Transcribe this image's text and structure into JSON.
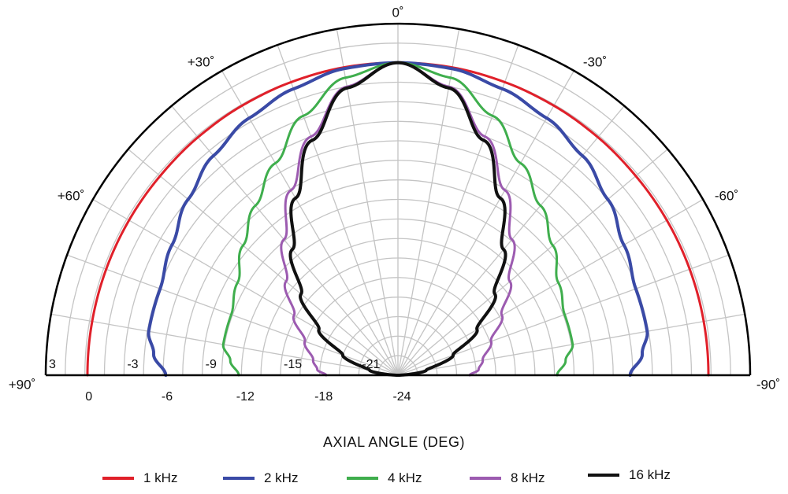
{
  "chart_data": {
    "type": "polar-line",
    "xlabel": "AXIAL ANGLE (DEG)",
    "angle_labels": [
      {
        "angle": 0,
        "text": "0˚"
      },
      {
        "angle": 30,
        "text": "+30˚"
      },
      {
        "angle": -30,
        "text": "-30˚"
      },
      {
        "angle": 60,
        "text": "+60˚"
      },
      {
        "angle": -60,
        "text": "-60˚"
      },
      {
        "angle": 90,
        "text": "+90˚"
      },
      {
        "angle": -90,
        "text": "-90˚"
      }
    ],
    "angle_range": [
      -90,
      90
    ],
    "angle_grid_step": 10,
    "radial_range_db": [
      -24,
      3
    ],
    "radial_grid_step_db": 1.5,
    "ring_labels_left": [
      "3",
      "-3",
      "-9",
      "-15",
      "-21"
    ],
    "ring_labels_right": [
      "0",
      "-6",
      "-12",
      "-18",
      "-24"
    ],
    "grid": true,
    "legend_position": "bottom",
    "series": [
      {
        "name": "1 kHz",
        "color": "#e0202a",
        "width": 3,
        "angles": [
          0,
          10,
          20,
          30,
          40,
          50,
          60,
          70,
          80,
          90
        ],
        "values": [
          0,
          0,
          -0.05,
          -0.1,
          -0.15,
          -0.2,
          -0.2,
          -0.2,
          -0.2,
          -0.2
        ]
      },
      {
        "name": "2 kHz",
        "color": "#3a4aa6",
        "width": 4,
        "angles": [
          0,
          10,
          20,
          30,
          40,
          50,
          60,
          70,
          80,
          85,
          90
        ],
        "values": [
          0,
          -0.1,
          -0.6,
          -1.2,
          -2.0,
          -3.0,
          -4.0,
          -4.6,
          -4.6,
          -5.2,
          -6.2
        ]
      },
      {
        "name": "4 kHz",
        "color": "#3fae4d",
        "width": 3,
        "angles": [
          0,
          10,
          20,
          30,
          40,
          50,
          60,
          70,
          80,
          85,
          90
        ],
        "values": [
          0,
          -0.8,
          -2.8,
          -5.2,
          -7.0,
          -8.5,
          -9.8,
          -10.4,
          -10.4,
          -11.1,
          -11.8
        ]
      },
      {
        "name": "8 kHz",
        "color": "#9c5bb0",
        "width": 3,
        "angles": [
          0,
          10,
          20,
          30,
          40,
          50,
          60,
          70,
          80,
          86,
          90
        ],
        "values": [
          0,
          -1.5,
          -4.5,
          -7.6,
          -10.4,
          -12.8,
          -14.8,
          -16.4,
          -17.4,
          -17.8,
          -18.5
        ]
      },
      {
        "name": "16 kHz",
        "color": "#111111",
        "width": 4,
        "angles": [
          0,
          10,
          20,
          30,
          40,
          50,
          60,
          70,
          80,
          90
        ],
        "values": [
          0,
          -1.6,
          -4.8,
          -8.3,
          -11.4,
          -14.3,
          -17.0,
          -19.5,
          -21.8,
          -24
        ]
      }
    ]
  }
}
